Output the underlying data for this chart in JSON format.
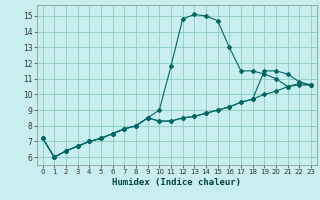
{
  "xlabel": "Humidex (Indice chaleur)",
  "bg_color": "#c8eef0",
  "grid_color": "#88ccbb",
  "line_color": "#006666",
  "xlim": [
    -0.5,
    23.5
  ],
  "ylim": [
    5.5,
    15.7
  ],
  "xticks": [
    0,
    1,
    2,
    3,
    4,
    5,
    6,
    7,
    8,
    9,
    10,
    11,
    12,
    13,
    14,
    15,
    16,
    17,
    18,
    19,
    20,
    21,
    22,
    23
  ],
  "yticks": [
    6,
    7,
    8,
    9,
    10,
    11,
    12,
    13,
    14,
    15
  ],
  "line1_x": [
    0,
    1,
    2,
    3,
    4,
    5,
    6,
    7,
    8,
    9,
    10,
    11,
    12,
    13,
    14,
    15,
    16,
    17,
    18,
    19,
    20,
    21,
    22,
    23
  ],
  "line1_y": [
    7.2,
    6.0,
    6.4,
    6.7,
    7.0,
    7.2,
    7.5,
    7.8,
    8.0,
    8.5,
    9.0,
    11.8,
    14.8,
    15.1,
    15.0,
    14.7,
    13.0,
    11.5,
    11.5,
    11.3,
    11.0,
    10.5,
    10.7,
    10.6
  ],
  "line2_x": [
    0,
    1,
    2,
    3,
    4,
    5,
    6,
    7,
    8,
    9,
    10,
    11,
    12,
    13,
    14,
    15,
    16,
    17,
    18,
    19,
    20,
    21,
    22,
    23
  ],
  "line2_y": [
    7.2,
    6.0,
    6.4,
    6.7,
    7.0,
    7.2,
    7.5,
    7.8,
    8.0,
    8.5,
    8.3,
    8.3,
    8.5,
    8.6,
    8.8,
    9.0,
    9.2,
    9.5,
    9.7,
    10.0,
    10.2,
    10.5,
    10.6,
    10.6
  ],
  "line3_x": [
    0,
    1,
    2,
    3,
    4,
    5,
    6,
    7,
    8,
    9,
    10,
    11,
    12,
    13,
    14,
    15,
    16,
    17,
    18,
    19,
    20,
    21,
    22,
    23
  ],
  "line3_y": [
    7.2,
    6.0,
    6.4,
    6.7,
    7.0,
    7.2,
    7.5,
    7.8,
    8.0,
    8.5,
    8.3,
    8.3,
    8.5,
    8.6,
    8.8,
    9.0,
    9.2,
    9.5,
    9.7,
    11.5,
    11.5,
    11.3,
    10.8,
    10.6
  ]
}
